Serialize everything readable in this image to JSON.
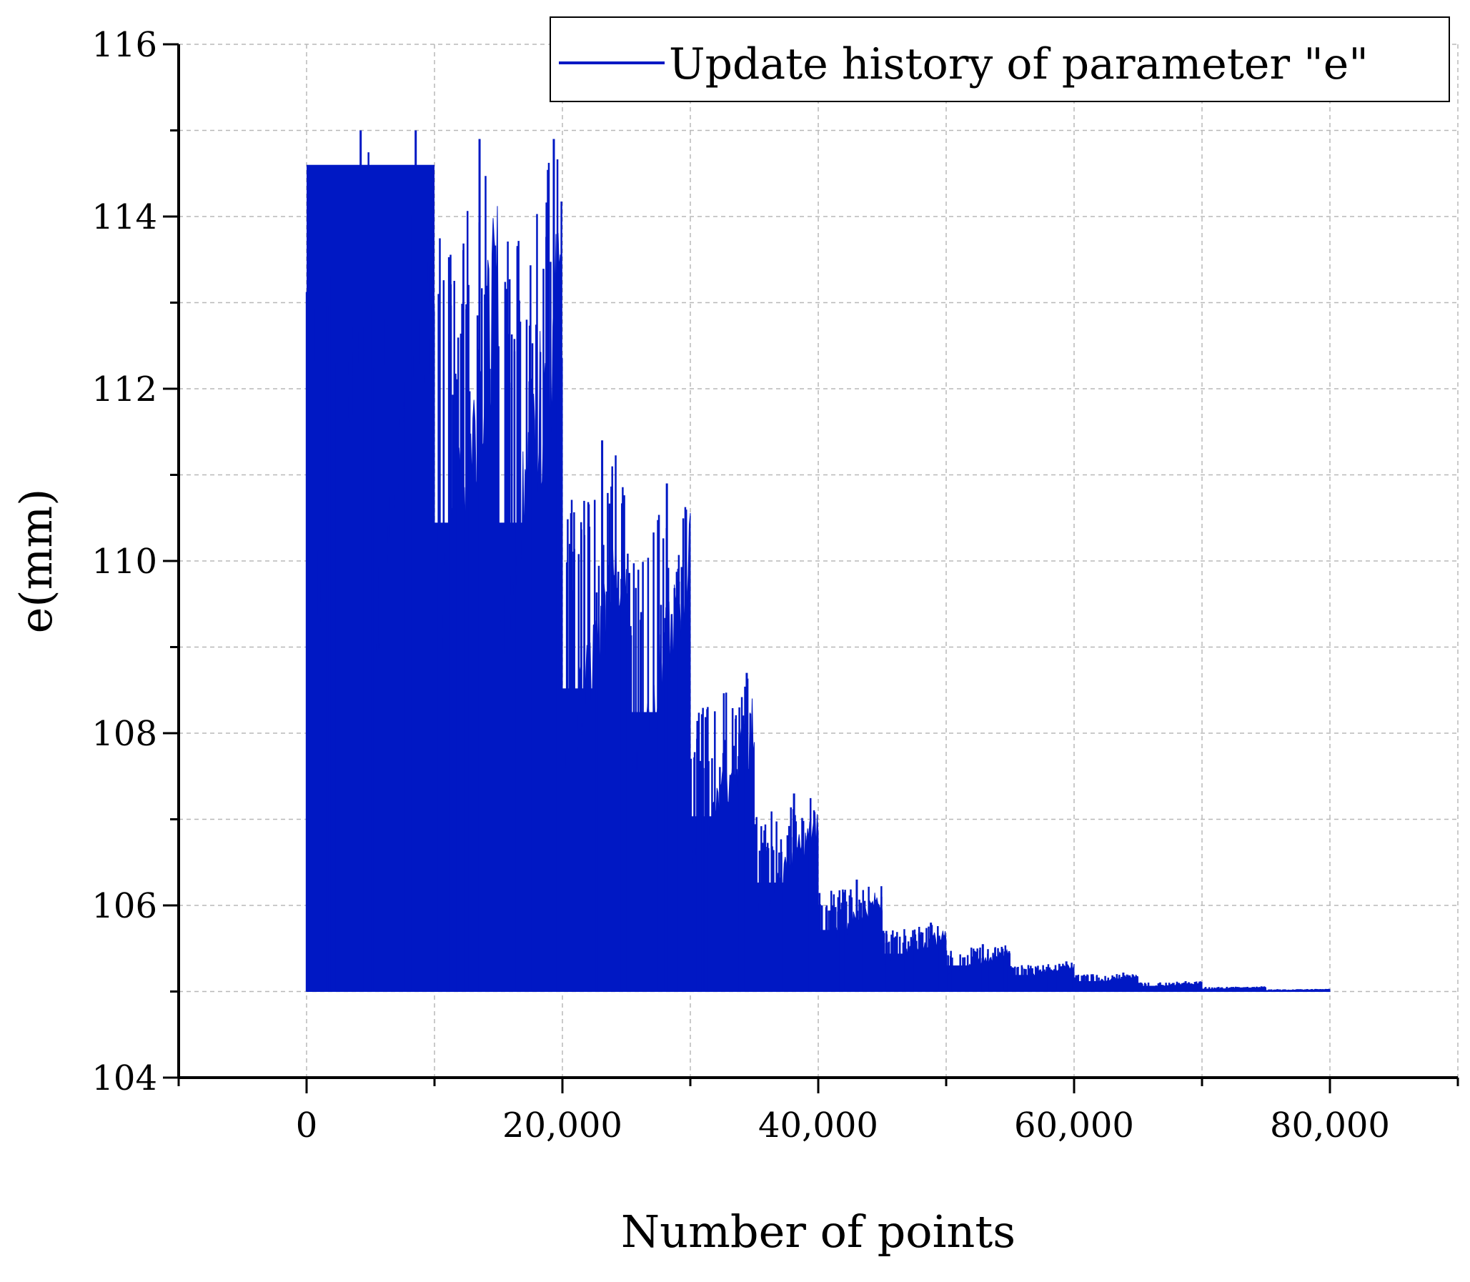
{
  "chart_data": {
    "type": "line",
    "title": "",
    "xlabel": "Number of points",
    "ylabel": "e(mm)",
    "xlim": [
      -10000,
      90000
    ],
    "ylim": [
      104,
      116
    ],
    "x_ticks": [
      0,
      20000,
      40000,
      60000,
      80000
    ],
    "x_tick_labels": [
      "0",
      "20,000",
      "40,000",
      "60,000",
      "80,000"
    ],
    "y_ticks": [
      104,
      106,
      108,
      110,
      112,
      114,
      116
    ],
    "y_tick_labels": [
      "104",
      "106",
      "108",
      "110",
      "112",
      "114",
      "116"
    ],
    "grid": true,
    "legend_position": "top-right",
    "series": [
      {
        "name": "Update history of parameter \"e\"",
        "color": "#0018c4",
        "segments": [
          {
            "x_start": 0,
            "x_end": 5000,
            "min": 105.0,
            "max": 115.0
          },
          {
            "x_start": 5000,
            "x_end": 10000,
            "min": 105.0,
            "max": 115.0
          },
          {
            "x_start": 10000,
            "x_end": 15000,
            "min": 105.0,
            "max": 114.9
          },
          {
            "x_start": 15000,
            "x_end": 20000,
            "min": 105.0,
            "max": 114.9
          },
          {
            "x_start": 20000,
            "x_end": 25000,
            "min": 105.0,
            "max": 111.4
          },
          {
            "x_start": 25000,
            "x_end": 30000,
            "min": 105.0,
            "max": 110.9
          },
          {
            "x_start": 30000,
            "x_end": 35000,
            "min": 105.0,
            "max": 108.7
          },
          {
            "x_start": 35000,
            "x_end": 40000,
            "min": 105.0,
            "max": 107.3
          },
          {
            "x_start": 40000,
            "x_end": 45000,
            "min": 105.0,
            "max": 106.3
          },
          {
            "x_start": 45000,
            "x_end": 50000,
            "min": 105.0,
            "max": 105.8
          },
          {
            "x_start": 50000,
            "x_end": 55000,
            "min": 105.0,
            "max": 105.55
          },
          {
            "x_start": 55000,
            "x_end": 60000,
            "min": 105.0,
            "max": 105.35
          },
          {
            "x_start": 60000,
            "x_end": 65000,
            "min": 105.0,
            "max": 105.22
          },
          {
            "x_start": 65000,
            "x_end": 70000,
            "min": 105.0,
            "max": 105.12
          },
          {
            "x_start": 70000,
            "x_end": 75000,
            "min": 105.0,
            "max": 105.06
          },
          {
            "x_start": 75000,
            "x_end": 80000,
            "min": 105.0,
            "max": 105.03
          }
        ]
      }
    ]
  }
}
